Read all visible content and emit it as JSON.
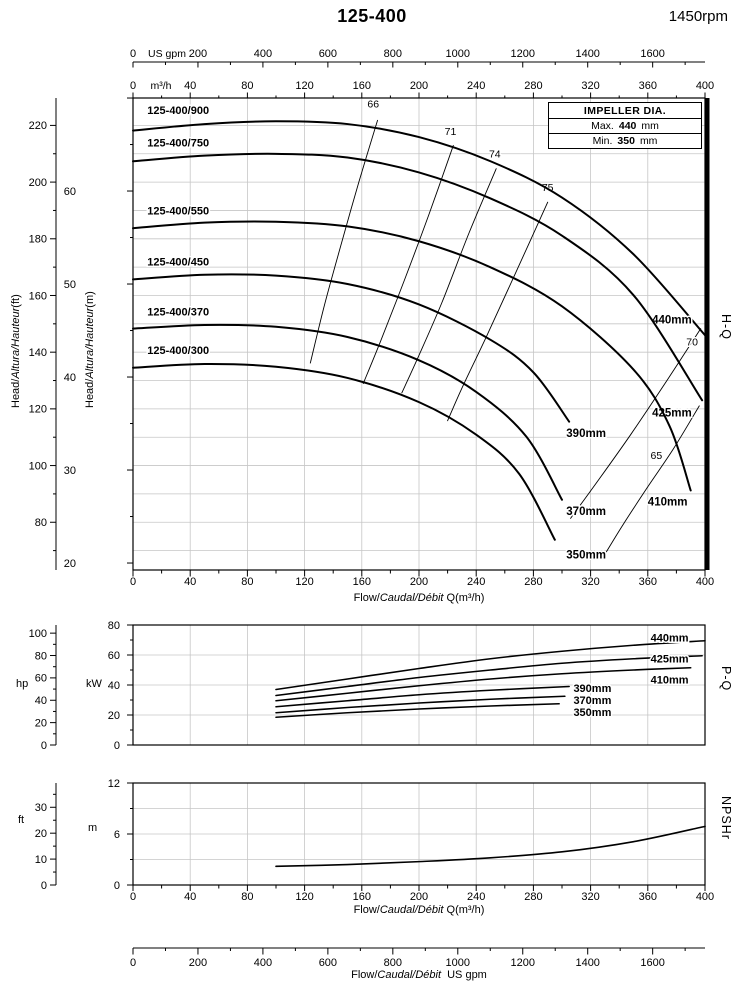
{
  "header": {
    "title": "125-400",
    "rpm": "1450rpm"
  },
  "impeller_box": {
    "title": "IMPELLER DIA.",
    "max_label": "Max.",
    "max_value": "440",
    "max_unit": "mm",
    "min_label": "Min.",
    "min_value": "350",
    "min_unit": "mm"
  },
  "side_labels": {
    "hq": "H-Q",
    "pq": "P-Q",
    "npshr": "NPSHr"
  },
  "axis_labels": {
    "usgpm": "US gpm",
    "m3h": "m³/h",
    "head_pre": "Head/",
    "head_it": "Altura/Hauteur",
    "head_ft_post": "(ft)",
    "head_m_post": "(m)",
    "flow_pre": "Flow/",
    "flow_it": "Caudal/Débit",
    "flow_q_post": " Q(m³/h)",
    "flow_gpm_post": "  US gpm",
    "hp": "hp",
    "kw": "kW",
    "ft": "ft",
    "m": "m"
  },
  "chart_data": [
    {
      "id": "hq",
      "type": "line",
      "title": "H-Q",
      "x_axis": {
        "unit": "m³/h",
        "min": 0,
        "max": 400,
        "major": 40,
        "minor": 20
      },
      "x_axis_gpm": {
        "unit": "US gpm",
        "min": 0,
        "max": 1600,
        "major": 200,
        "minor": 100
      },
      "y_axis_m": {
        "unit": "m",
        "ticks": [
          20,
          30,
          40,
          50,
          60
        ]
      },
      "y_axis_ft": {
        "unit": "ft",
        "ticks": [
          80,
          100,
          120,
          140,
          160,
          180,
          200,
          220
        ]
      },
      "series": [
        {
          "name": "440mm",
          "model": "125-400/900",
          "label_pos": [
            363,
            46.2
          ],
          "model_pos": [
            10,
            68.3
          ],
          "points": [
            [
              0,
              66.5
            ],
            [
              50,
              67.2
            ],
            [
              100,
              67.5
            ],
            [
              150,
              67.2
            ],
            [
              200,
              65.8
            ],
            [
              250,
              63.2
            ],
            [
              300,
              59.3
            ],
            [
              350,
              53.2
            ],
            [
              400,
              44.5
            ]
          ]
        },
        {
          "name": "425mm",
          "model": "125-400/750",
          "label_pos": [
            363,
            36.2
          ],
          "model_pos": [
            10,
            64.8
          ],
          "points": [
            [
              0,
              63.2
            ],
            [
              50,
              63.8
            ],
            [
              100,
              64.0
            ],
            [
              150,
              63.6
            ],
            [
              200,
              62.0
            ],
            [
              250,
              59.2
            ],
            [
              300,
              55.2
            ],
            [
              350,
              48.8
            ],
            [
              398,
              37.5
            ]
          ]
        },
        {
          "name": "410mm",
          "model": "125-400/550",
          "label_pos": [
            360,
            26.6
          ],
          "model_pos": [
            10,
            57.5
          ],
          "points": [
            [
              0,
              56.0
            ],
            [
              50,
              56.6
            ],
            [
              100,
              56.7
            ],
            [
              150,
              56.2
            ],
            [
              200,
              54.6
            ],
            [
              250,
              51.8
            ],
            [
              300,
              47.6
            ],
            [
              350,
              40.8
            ],
            [
              375,
              34.8
            ],
            [
              390,
              27.8
            ]
          ]
        },
        {
          "name": "390mm",
          "model": "125-400/450",
          "label_pos": [
            303,
            34.0
          ],
          "model_pos": [
            10,
            52.0
          ],
          "points": [
            [
              0,
              50.5
            ],
            [
              50,
              51.0
            ],
            [
              100,
              50.9
            ],
            [
              150,
              50.0
            ],
            [
              200,
              47.8
            ],
            [
              250,
              44.0
            ],
            [
              280,
              40.5
            ],
            [
              305,
              35.2
            ]
          ]
        },
        {
          "name": "370mm",
          "model": "125-400/370",
          "label_pos": [
            303,
            25.6
          ],
          "model_pos": [
            10,
            46.6
          ],
          "points": [
            [
              0,
              45.2
            ],
            [
              50,
              45.6
            ],
            [
              100,
              45.4
            ],
            [
              150,
              44.3
            ],
            [
              200,
              41.8
            ],
            [
              240,
              38.4
            ],
            [
              275,
              33.6
            ],
            [
              300,
              26.8
            ]
          ]
        },
        {
          "name": "350mm",
          "model": "125-400/300",
          "label_pos": [
            303,
            20.9
          ],
          "model_pos": [
            10,
            42.5
          ],
          "points": [
            [
              0,
              41.0
            ],
            [
              50,
              41.4
            ],
            [
              100,
              41.1
            ],
            [
              150,
              39.9
            ],
            [
              200,
              37.3
            ],
            [
              240,
              33.8
            ],
            [
              270,
              29.6
            ],
            [
              295,
              22.5
            ]
          ]
        }
      ],
      "efficiency": [
        {
          "value": "66",
          "label_pos": [
            168,
            69.0
          ],
          "points": [
            [
              171,
              67.6
            ],
            [
              158,
              61.0
            ],
            [
              146,
              54.5
            ],
            [
              134,
              47.8
            ],
            [
              124,
              41.5
            ]
          ]
        },
        {
          "value": "71",
          "label_pos": [
            222,
            66.0
          ],
          "points": [
            [
              224,
              64.9
            ],
            [
              207,
              57.5
            ],
            [
              190,
              50.5
            ],
            [
              173,
              43.8
            ],
            [
              161,
              39.3
            ]
          ]
        },
        {
          "value": "74",
          "label_pos": [
            253,
            63.6
          ],
          "points": [
            [
              254,
              62.4
            ],
            [
              235,
              55.5
            ],
            [
              216,
              48.0
            ],
            [
              199,
              42.0
            ],
            [
              188,
              38.3
            ]
          ]
        },
        {
          "value": "75",
          "label_pos": [
            290,
            60.0
          ],
          "points": [
            [
              290,
              58.8
            ],
            [
              267,
              51.0
            ],
            [
              247,
              44.3
            ],
            [
              230,
              38.8
            ],
            [
              220,
              35.3
            ]
          ]
        },
        {
          "value": "70",
          "label_pos": [
            391,
            43.4
          ],
          "points": [
            [
              397,
              45.2
            ],
            [
              372,
              39.3
            ],
            [
              348,
              33.8
            ],
            [
              324,
              28.6
            ],
            [
              306,
              24.8
            ]
          ]
        },
        {
          "value": "65",
          "label_pos": [
            366,
            31.2
          ],
          "points": [
            [
              396,
              36.9
            ],
            [
              378,
              32.3
            ],
            [
              360,
              28.2
            ],
            [
              343,
              24.2
            ],
            [
              331,
              21.2
            ]
          ]
        }
      ]
    },
    {
      "id": "pq",
      "type": "line",
      "title": "P-Q",
      "x_axis": {
        "unit": "m³/h",
        "min": 0,
        "max": 400,
        "major": 40
      },
      "y_axis_kw": {
        "unit": "kW",
        "ticks": [
          0,
          20,
          40,
          60,
          80
        ]
      },
      "y_axis_hp": {
        "unit": "hp",
        "ticks": [
          0,
          20,
          40,
          60,
          80,
          100
        ]
      },
      "series": [
        {
          "name": "440mm",
          "label_pos": [
            362,
            71.6
          ],
          "points": [
            [
              100,
              37
            ],
            [
              150,
              44
            ],
            [
              200,
              51
            ],
            [
              250,
              57.5
            ],
            [
              300,
              62.5
            ],
            [
              350,
              66.5
            ],
            [
              400,
              69.5
            ]
          ]
        },
        {
          "name": "425mm",
          "label_pos": [
            362,
            57.6
          ],
          "points": [
            [
              100,
              33
            ],
            [
              150,
              39
            ],
            [
              200,
              45
            ],
            [
              250,
              50
            ],
            [
              300,
              54.5
            ],
            [
              350,
              57.5
            ],
            [
              398,
              59.5
            ]
          ]
        },
        {
          "name": "410mm",
          "label_pos": [
            362,
            43.4
          ],
          "points": [
            [
              100,
              29.5
            ],
            [
              150,
              34.5
            ],
            [
              200,
              39.5
            ],
            [
              250,
              44
            ],
            [
              300,
              47.5
            ],
            [
              350,
              50
            ],
            [
              390,
              51.5
            ]
          ]
        },
        {
          "name": "390mm",
          "label_pos": [
            308,
            38.0
          ],
          "points": [
            [
              100,
              25.5
            ],
            [
              150,
              29.5
            ],
            [
              200,
              33.5
            ],
            [
              250,
              36.5
            ],
            [
              305,
              39
            ]
          ]
        },
        {
          "name": "370mm",
          "label_pos": [
            308,
            30.0
          ],
          "points": [
            [
              100,
              21.5
            ],
            [
              150,
              25
            ],
            [
              200,
              28
            ],
            [
              250,
              30.5
            ],
            [
              302,
              32.5
            ]
          ]
        },
        {
          "name": "350mm",
          "label_pos": [
            308,
            22.0
          ],
          "points": [
            [
              100,
              18.5
            ],
            [
              150,
              21.5
            ],
            [
              200,
              24
            ],
            [
              250,
              26
            ],
            [
              298,
              27.5
            ]
          ]
        }
      ]
    },
    {
      "id": "npsh",
      "type": "line",
      "title": "NPSHr",
      "x_axis": {
        "unit": "m³/h",
        "min": 0,
        "max": 400,
        "major": 40,
        "minor": 20
      },
      "x_axis_gpm": {
        "unit": "US gpm",
        "min": 0,
        "max": 1600,
        "major": 200,
        "minor": 100
      },
      "y_axis_m": {
        "unit": "m",
        "ticks": [
          0,
          6,
          12
        ]
      },
      "y_axis_ft": {
        "unit": "ft",
        "ticks": [
          0,
          10,
          20,
          30
        ]
      },
      "series": [
        {
          "name": "NPSHr",
          "points": [
            [
              100,
              2.2
            ],
            [
              150,
              2.4
            ],
            [
              200,
              2.75
            ],
            [
              250,
              3.2
            ],
            [
              300,
              3.9
            ],
            [
              350,
              5.1
            ],
            [
              400,
              6.9
            ]
          ]
        }
      ]
    }
  ]
}
